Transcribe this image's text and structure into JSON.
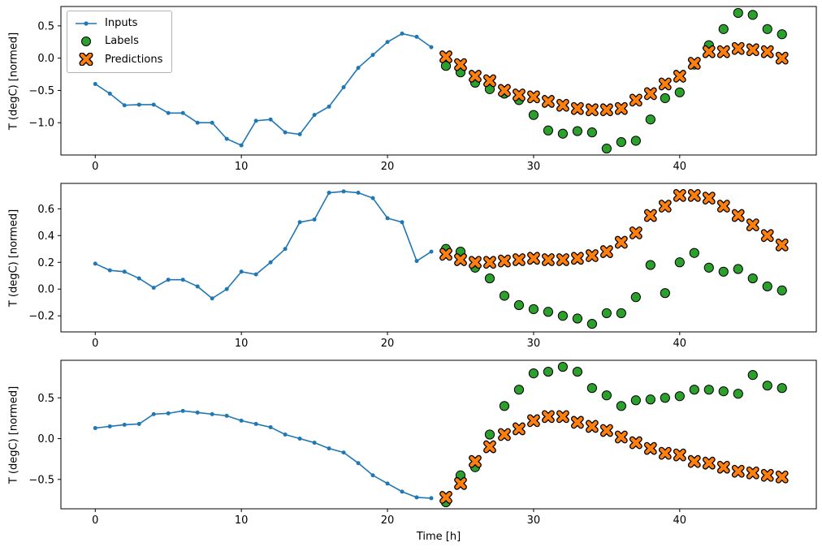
{
  "figure": {
    "xlabel": "Time [h]",
    "ylabel": "T (degC) [normed]",
    "legend_items": [
      {
        "label": "Inputs"
      },
      {
        "label": "Labels"
      },
      {
        "label": "Predictions"
      }
    ]
  },
  "colors": {
    "inputs": "#1f77b4",
    "labels": "#2ca02c",
    "predictions": "#ff7f0e",
    "marker_edge": "#000000",
    "spine": "#000000"
  },
  "chart_data": [
    {
      "type": "line",
      "ylabel": "T (degC) [normed]",
      "xlim": [
        -2.35,
        49.35
      ],
      "ylim": [
        -1.5,
        0.8
      ],
      "xticks": [
        0,
        10,
        20,
        30,
        40
      ],
      "yticks": [
        -1.0,
        -0.5,
        0.0,
        0.5
      ],
      "grid": false,
      "legend_position": "upper left",
      "series": [
        {
          "name": "Inputs",
          "marker": "dot-line",
          "x_start": 0,
          "x_step": 1,
          "y": [
            -0.4,
            -0.55,
            -0.73,
            -0.72,
            -0.72,
            -0.85,
            -0.85,
            -1.0,
            -1.0,
            -1.25,
            -1.35,
            -0.97,
            -0.95,
            -1.15,
            -1.18,
            -0.88,
            -0.75,
            -0.45,
            -0.15,
            0.05,
            0.25,
            0.38,
            0.33,
            0.17
          ]
        },
        {
          "name": "Labels",
          "marker": "circle",
          "x_start": 24,
          "x_step": 1,
          "y": [
            -0.12,
            -0.22,
            -0.38,
            -0.48,
            -0.55,
            -0.65,
            -0.88,
            -1.12,
            -1.17,
            -1.13,
            -1.15,
            -1.4,
            -1.3,
            -1.28,
            -0.95,
            -0.62,
            -0.53,
            -0.1,
            0.2,
            0.45,
            0.7,
            0.67,
            0.45,
            0.37
          ]
        },
        {
          "name": "Predictions",
          "marker": "X",
          "x_start": 24,
          "x_step": 1,
          "y": [
            0.02,
            -0.1,
            -0.28,
            -0.35,
            -0.5,
            -0.57,
            -0.6,
            -0.67,
            -0.73,
            -0.78,
            -0.8,
            -0.8,
            -0.78,
            -0.65,
            -0.55,
            -0.4,
            -0.28,
            -0.08,
            0.1,
            0.1,
            0.15,
            0.13,
            0.1,
            0.0
          ]
        }
      ]
    },
    {
      "type": "line",
      "ylabel": "T (degC) [normed]",
      "xlim": [
        -2.35,
        49.35
      ],
      "ylim": [
        -0.32,
        0.79
      ],
      "xticks": [
        0,
        10,
        20,
        30,
        40
      ],
      "yticks": [
        -0.2,
        0.0,
        0.2,
        0.4,
        0.6
      ],
      "grid": false,
      "series": [
        {
          "name": "Inputs",
          "marker": "dot-line",
          "x_start": 0,
          "x_step": 1,
          "y": [
            0.19,
            0.14,
            0.13,
            0.08,
            0.01,
            0.07,
            0.07,
            0.02,
            -0.07,
            0.0,
            0.13,
            0.11,
            0.2,
            0.3,
            0.5,
            0.52,
            0.72,
            0.73,
            0.72,
            0.68,
            0.53,
            0.5,
            0.21,
            0.28
          ]
        },
        {
          "name": "Labels",
          "marker": "circle",
          "x_start": 24,
          "x_step": 1,
          "y": [
            0.3,
            0.28,
            0.16,
            0.08,
            -0.05,
            -0.12,
            -0.15,
            -0.17,
            -0.2,
            -0.22,
            -0.26,
            -0.18,
            -0.18,
            -0.06,
            0.18,
            -0.03,
            0.2,
            0.27,
            0.16,
            0.13,
            0.15,
            0.08,
            0.02,
            -0.01
          ]
        },
        {
          "name": "Predictions",
          "marker": "X",
          "x_start": 24,
          "x_step": 1,
          "y": [
            0.26,
            0.22,
            0.2,
            0.2,
            0.21,
            0.22,
            0.23,
            0.22,
            0.22,
            0.23,
            0.25,
            0.28,
            0.35,
            0.42,
            0.55,
            0.62,
            0.7,
            0.7,
            0.68,
            0.62,
            0.55,
            0.48,
            0.4,
            0.33
          ]
        }
      ]
    },
    {
      "type": "line",
      "ylabel": "T (degC) [normed]",
      "xlabel": "Time [h]",
      "xlim": [
        -2.35,
        49.35
      ],
      "ylim": [
        -0.86,
        0.96
      ],
      "xticks": [
        0,
        10,
        20,
        30,
        40
      ],
      "yticks": [
        -0.5,
        0.0,
        0.5
      ],
      "grid": false,
      "series": [
        {
          "name": "Inputs",
          "marker": "dot-line",
          "x_start": 0,
          "x_step": 1,
          "y": [
            0.13,
            0.15,
            0.17,
            0.18,
            0.3,
            0.31,
            0.34,
            0.32,
            0.3,
            0.28,
            0.22,
            0.18,
            0.14,
            0.05,
            0.0,
            -0.05,
            -0.12,
            -0.17,
            -0.3,
            -0.45,
            -0.55,
            -0.65,
            -0.72,
            -0.73
          ]
        },
        {
          "name": "Labels",
          "marker": "circle",
          "x_start": 24,
          "x_step": 1,
          "y": [
            -0.78,
            -0.45,
            -0.35,
            0.05,
            0.4,
            0.6,
            0.8,
            0.82,
            0.88,
            0.82,
            0.62,
            0.53,
            0.4,
            0.47,
            0.48,
            0.5,
            0.52,
            0.6,
            0.6,
            0.58,
            0.55,
            0.78,
            0.65,
            0.62
          ]
        },
        {
          "name": "Predictions",
          "marker": "X",
          "x_start": 24,
          "x_step": 1,
          "y": [
            -0.72,
            -0.55,
            -0.28,
            -0.1,
            0.05,
            0.12,
            0.22,
            0.27,
            0.27,
            0.2,
            0.15,
            0.1,
            0.02,
            -0.05,
            -0.12,
            -0.18,
            -0.2,
            -0.28,
            -0.3,
            -0.35,
            -0.4,
            -0.42,
            -0.45,
            -0.47
          ]
        }
      ]
    }
  ]
}
